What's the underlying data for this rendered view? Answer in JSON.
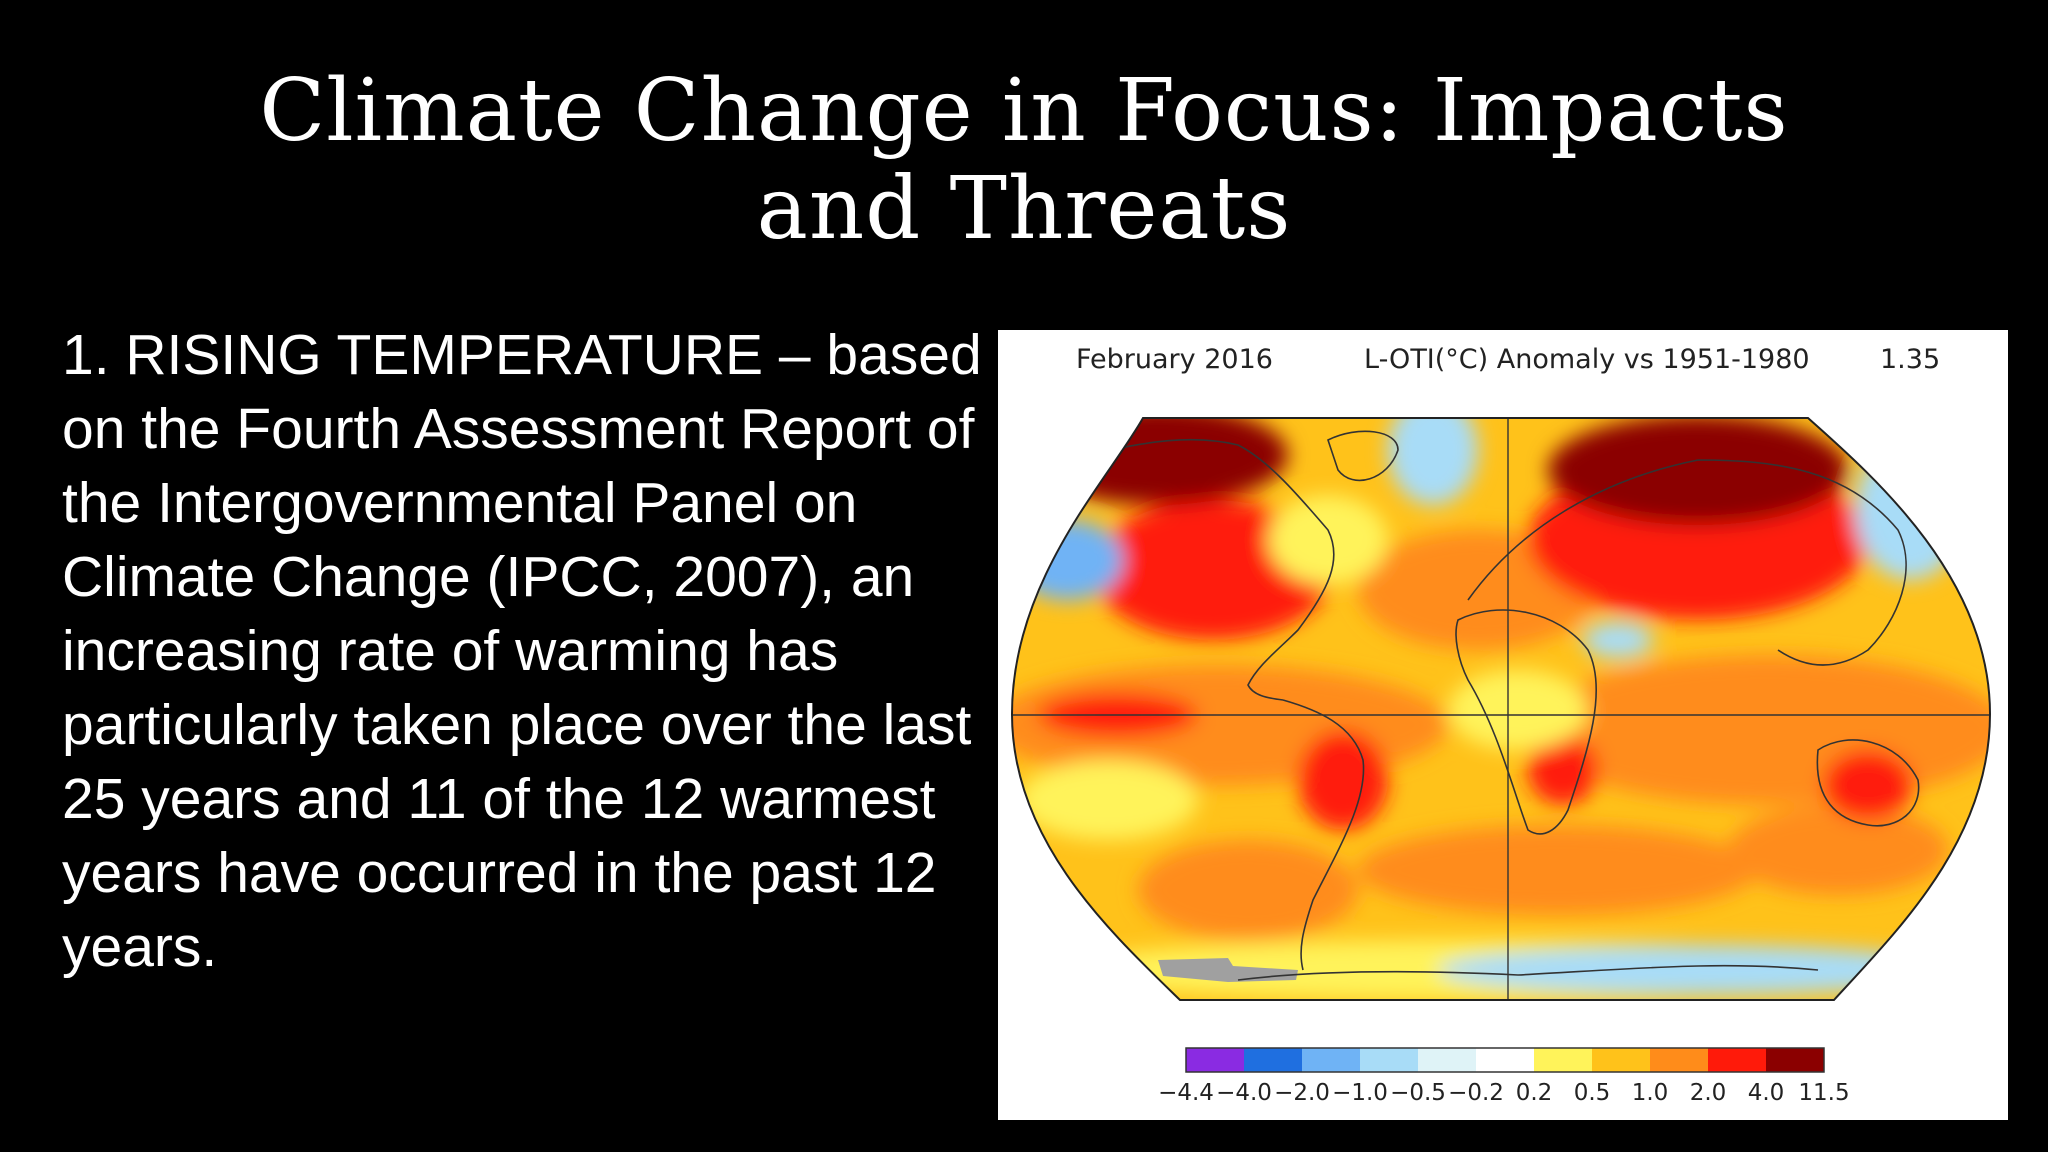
{
  "slide": {
    "title_line1": "Climate Change in Focus: Impacts",
    "title_line2": "and Threats",
    "body_text": "1. RISING TEMPERATURE – based on the Fourth Assessment Report of the Intergovernmental Panel on Climate Change (IPCC, 2007), an increasing rate of warming has particularly taken place over the last 25 years and 11 of the 12 warmest years have occurred in the past 12 years."
  },
  "map": {
    "date_label": "February 2016",
    "metric_label": "L-OTI(°C) Anomaly vs 1951-1980",
    "global_value": "1.35",
    "projection": "robinson",
    "legend": {
      "labels": [
        "−4.4",
        "−4.0",
        "−2.0",
        "−1.0",
        "−0.5",
        "−0.2",
        "0.2",
        "0.5",
        "1.0",
        "2.0",
        "4.0",
        "11.5"
      ],
      "colors": [
        "#8a2be2",
        "#1f6fe0",
        "#6fb3f5",
        "#a8dcf7",
        "#dff3f7",
        "#ffffff",
        "#fff35a",
        "#ffc21a",
        "#ff8c1a",
        "#ff1a0a",
        "#8b0000"
      ]
    },
    "colors": {
      "no_data": "#a0a0a0",
      "dark_red": "#8b0000",
      "red": "#ff1a0a",
      "orange": "#ff8c1a",
      "gold": "#ffc21a",
      "yellow": "#fff35a",
      "light_blue": "#a8dcf7",
      "blue": "#6fb3f5"
    }
  }
}
